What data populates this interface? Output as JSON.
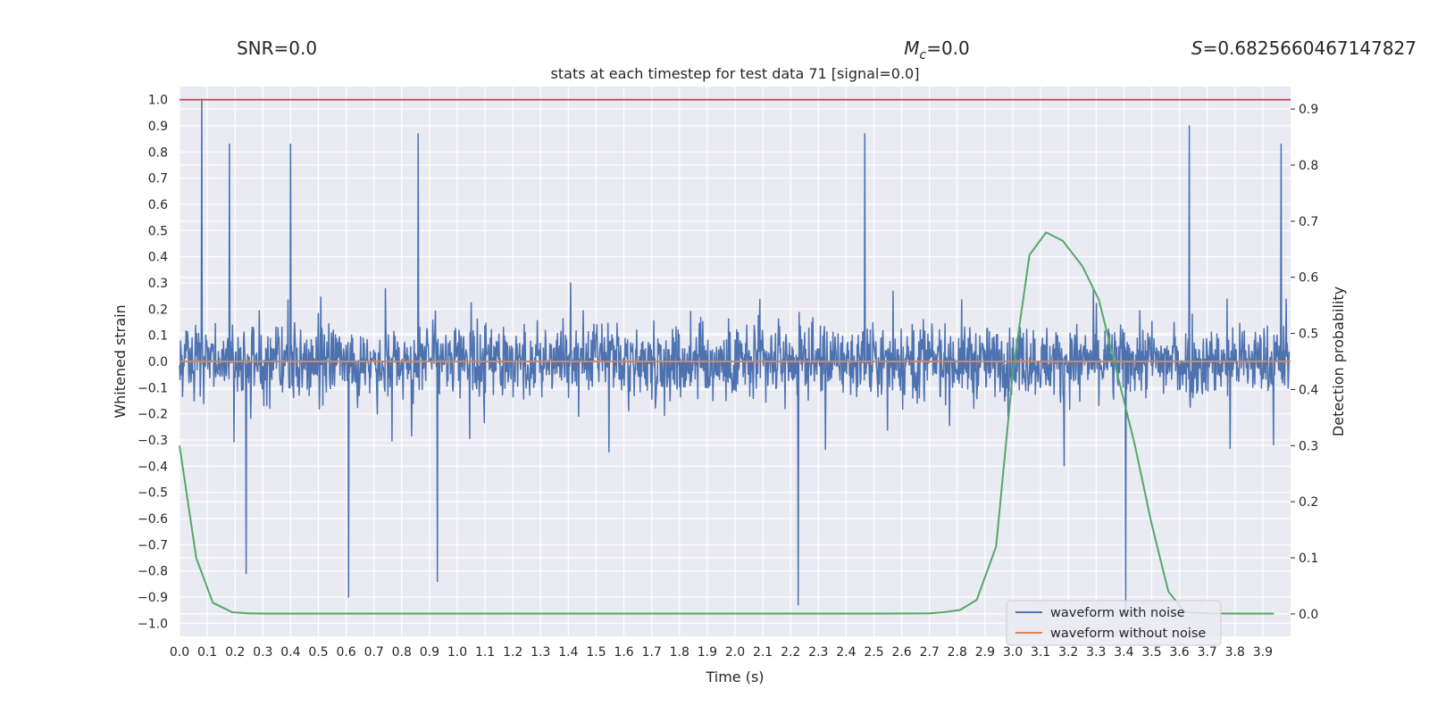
{
  "chart_data": {
    "type": "line",
    "title": "stats at each timestep for test data 71 [signal=0.0]",
    "stats": {
      "snr_label": "SNR=0.0",
      "mc_symbol": "M",
      "mc_subscript": "c",
      "mc_value": "=0.0",
      "s_symbol": "S",
      "s_value": "=0.6825660467147827"
    },
    "xlabel": "Time (s)",
    "ylabel_left": "Whitened strain",
    "ylabel_right": "Detection probability",
    "xlim": [
      0.0,
      4.0
    ],
    "ylim_left": [
      -1.05,
      1.05
    ],
    "ylim_right": [
      -0.04,
      0.94
    ],
    "x_ticks": [
      "0.0",
      "0.1",
      "0.2",
      "0.3",
      "0.4",
      "0.5",
      "0.6",
      "0.7",
      "0.8",
      "0.9",
      "1.0",
      "1.1",
      "1.2",
      "1.3",
      "1.4",
      "1.5",
      "1.6",
      "1.7",
      "1.8",
      "1.9",
      "2.0",
      "2.1",
      "2.2",
      "2.3",
      "2.4",
      "2.5",
      "2.6",
      "2.7",
      "2.8",
      "2.9",
      "3.0",
      "3.1",
      "3.2",
      "3.3",
      "3.4",
      "3.5",
      "3.6",
      "3.7",
      "3.8",
      "3.9"
    ],
    "y_ticks_left": [
      "1.0",
      "0.9",
      "0.8",
      "0.7",
      "0.6",
      "0.5",
      "0.4",
      "0.3",
      "0.2",
      "0.1",
      "0.0",
      "−0.1",
      "−0.2",
      "−0.3",
      "−0.4",
      "−0.5",
      "−0.6",
      "−0.7",
      "−0.8",
      "−0.9",
      "−1.0"
    ],
    "y_ticks_right": [
      "0.9",
      "0.8",
      "0.7",
      "0.6",
      "0.5",
      "0.4",
      "0.3",
      "0.2",
      "0.1",
      "0.0"
    ],
    "threshold": 1.0,
    "series": [
      {
        "name": "waveform with noise",
        "color": "#4c72b0",
        "note": "whitened noisy strain, sampled densely; envelope approx +/-0.3 with spikes",
        "spikes": [
          {
            "t": 0.08,
            "v": 1.0
          },
          {
            "t": 0.18,
            "v": 0.83
          },
          {
            "t": 0.4,
            "v": 0.83
          },
          {
            "t": 0.86,
            "v": 0.87
          },
          {
            "t": 2.47,
            "v": 0.87
          },
          {
            "t": 3.64,
            "v": 0.9
          },
          {
            "t": 3.97,
            "v": 0.83
          },
          {
            "t": 0.61,
            "v": -0.9
          },
          {
            "t": 2.23,
            "v": -0.93
          },
          {
            "t": 3.41,
            "v": -0.95
          },
          {
            "t": 0.24,
            "v": -0.81
          },
          {
            "t": 0.93,
            "v": -0.84
          }
        ]
      },
      {
        "name": "waveform without noise",
        "color": "#dd8452",
        "value": 0.0
      },
      {
        "name": "detection probability",
        "color": "#55a868",
        "axis": "right",
        "x": [
          0.0,
          0.06,
          0.12,
          0.19,
          0.25,
          0.31,
          0.5,
          1.0,
          1.5,
          2.0,
          2.5,
          2.7,
          2.75,
          2.81,
          2.87,
          2.94,
          3.0,
          3.06,
          3.12,
          3.18,
          3.25,
          3.31,
          3.37,
          3.44,
          3.5,
          3.56,
          3.62,
          3.7,
          3.8,
          3.94
        ],
        "values": [
          0.3,
          0.1,
          0.02,
          0.003,
          0.001,
          0.0005,
          0.0005,
          0.0005,
          0.0005,
          0.0005,
          0.0005,
          0.001,
          0.003,
          0.007,
          0.025,
          0.12,
          0.43,
          0.64,
          0.68,
          0.665,
          0.62,
          0.56,
          0.44,
          0.3,
          0.16,
          0.04,
          0.003,
          0.001,
          0.0005,
          0.0005
        ]
      }
    ],
    "legend": {
      "location": "lower right",
      "entries": [
        {
          "label": "waveform with noise",
          "color": "#4c72b0"
        },
        {
          "label": "waveform without noise",
          "color": "#dd8452"
        }
      ]
    },
    "colors": {
      "background": "#eaeaf2",
      "grid": "#ffffff",
      "threshold": "#c44e52",
      "text": "#262626"
    }
  }
}
